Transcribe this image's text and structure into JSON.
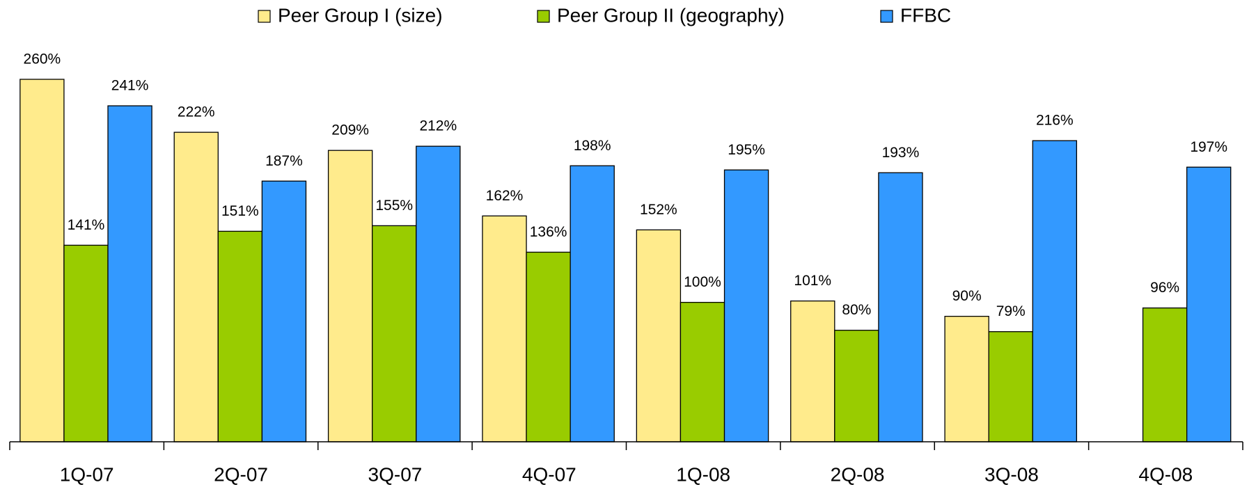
{
  "chart_data": {
    "type": "bar",
    "categories": [
      "1Q-07",
      "2Q-07",
      "3Q-07",
      "4Q-07",
      "1Q-08",
      "2Q-08",
      "3Q-08",
      "4Q-08"
    ],
    "series": [
      {
        "name": "Peer Group I (size)",
        "color": "#FFEB8C",
        "values": [
          260,
          222,
          209,
          162,
          152,
          101,
          90,
          null
        ],
        "value_labels": [
          "260%",
          "222%",
          "209%",
          "162%",
          "152%",
          "101%",
          "90%",
          null
        ]
      },
      {
        "name": "Peer Group II (geography)",
        "color": "#99CC00",
        "values": [
          141,
          151,
          155,
          136,
          100,
          80,
          79,
          96
        ],
        "value_labels": [
          "141%",
          "151%",
          "155%",
          "136%",
          "100%",
          "80%",
          "79%",
          "96%"
        ]
      },
      {
        "name": "FFBC",
        "color": "#3399FF",
        "values": [
          241,
          187,
          212,
          198,
          195,
          193,
          216,
          197
        ],
        "value_labels": [
          "241%",
          "187%",
          "212%",
          "198%",
          "195%",
          "193%",
          "216%",
          "197%"
        ]
      }
    ],
    "legend": "top"
  }
}
